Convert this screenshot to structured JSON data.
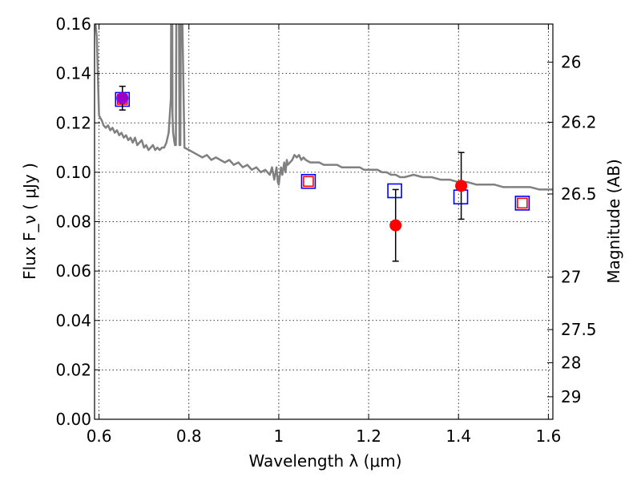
{
  "chart_data": {
    "type": "scatter",
    "title": "",
    "xlabel": "Wavelength  λ (μm)",
    "ylabel": "Flux  F_ν  ( μJy )",
    "y2label": "Magnitude (AB)",
    "xlim": [
      0.59,
      1.61
    ],
    "ylim": [
      0.0,
      0.16
    ],
    "grid": true,
    "x_ticks": [
      0.6,
      0.8,
      1.0,
      1.2,
      1.4,
      1.6
    ],
    "x_tick_labels": [
      "0.6",
      "0.8",
      "1",
      "1.2",
      "1.4",
      "1.6"
    ],
    "y_ticks": [
      0.0,
      0.02,
      0.04,
      0.06,
      0.08,
      0.1,
      0.12,
      0.14,
      0.16
    ],
    "y_tick_labels": [
      "0.00",
      "0.02",
      "0.04",
      "0.06",
      "0.08",
      "0.10",
      "0.12",
      "0.14",
      "0.16"
    ],
    "y2_ticks": [
      26,
      26.2,
      26.5,
      27,
      27.5,
      28,
      29
    ],
    "y2_tick_labels": [
      "26",
      "26.2",
      "26.5",
      "27",
      "27.5",
      "28",
      "29"
    ],
    "series": [
      {
        "kind": "line",
        "color": "#808080",
        "x": [
          0.592,
          0.595,
          0.598,
          0.6,
          0.603,
          0.606,
          0.61,
          0.615,
          0.62,
          0.625,
          0.63,
          0.635,
          0.64,
          0.645,
          0.65,
          0.655,
          0.66,
          0.665,
          0.67,
          0.675,
          0.68,
          0.685,
          0.69,
          0.695,
          0.7,
          0.705,
          0.71,
          0.715,
          0.72,
          0.725,
          0.73,
          0.735,
          0.74,
          0.745,
          0.75,
          0.755,
          0.76,
          0.7605,
          0.763,
          0.7635,
          0.765,
          0.768,
          0.769,
          0.771,
          0.772,
          0.778,
          0.779,
          0.781,
          0.782,
          0.785,
          0.79,
          0.8,
          0.81,
          0.82,
          0.83,
          0.84,
          0.85,
          0.86,
          0.87,
          0.88,
          0.89,
          0.9,
          0.91,
          0.92,
          0.93,
          0.94,
          0.95,
          0.96,
          0.97,
          0.98,
          0.985,
          0.99,
          0.995,
          0.998,
          1.0,
          1.002,
          1.005,
          1.008,
          1.012,
          1.015,
          1.018,
          1.02,
          1.025,
          1.03,
          1.035,
          1.04,
          1.045,
          1.05,
          1.055,
          1.06,
          1.07,
          1.08,
          1.09,
          1.1,
          1.11,
          1.12,
          1.13,
          1.14,
          1.15,
          1.16,
          1.17,
          1.18,
          1.19,
          1.2,
          1.21,
          1.22,
          1.23,
          1.24,
          1.25,
          1.26,
          1.27,
          1.28,
          1.3,
          1.32,
          1.34,
          1.36,
          1.38,
          1.4,
          1.42,
          1.44,
          1.46,
          1.48,
          1.5,
          1.52,
          1.54,
          1.56,
          1.58,
          1.6,
          1.61
        ],
        "y": [
          0.16,
          0.155,
          0.135,
          0.123,
          0.122,
          0.121,
          0.119,
          0.118,
          0.119,
          0.117,
          0.118,
          0.116,
          0.117,
          0.115,
          0.116,
          0.114,
          0.115,
          0.113,
          0.114,
          0.112,
          0.114,
          0.111,
          0.112,
          0.113,
          0.11,
          0.111,
          0.109,
          0.11,
          0.111,
          0.109,
          0.11,
          0.109,
          0.11,
          0.11,
          0.112,
          0.116,
          0.13,
          0.165,
          0.165,
          0.123,
          0.116,
          0.112,
          0.111,
          0.111,
          0.165,
          0.165,
          0.111,
          0.111,
          0.165,
          0.165,
          0.11,
          0.109,
          0.108,
          0.107,
          0.106,
          0.107,
          0.105,
          0.106,
          0.105,
          0.104,
          0.105,
          0.103,
          0.104,
          0.102,
          0.103,
          0.101,
          0.102,
          0.1,
          0.101,
          0.099,
          0.102,
          0.097,
          0.102,
          0.096,
          0.095,
          0.098,
          0.102,
          0.099,
          0.104,
          0.1,
          0.105,
          0.103,
          0.104,
          0.105,
          0.107,
          0.106,
          0.107,
          0.105,
          0.106,
          0.105,
          0.104,
          0.104,
          0.104,
          0.103,
          0.103,
          0.103,
          0.103,
          0.102,
          0.102,
          0.102,
          0.102,
          0.102,
          0.101,
          0.101,
          0.101,
          0.101,
          0.1,
          0.1,
          0.099,
          0.099,
          0.098,
          0.098,
          0.099,
          0.098,
          0.098,
          0.097,
          0.097,
          0.096,
          0.096,
          0.095,
          0.095,
          0.095,
          0.094,
          0.094,
          0.094,
          0.094,
          0.093,
          0.093,
          0.093
        ]
      },
      {
        "kind": "square",
        "color": "#0000ff",
        "x": [
          0.652,
          1.066,
          1.258,
          1.405,
          1.542
        ],
        "y": [
          0.1295,
          0.0963,
          0.0925,
          0.09,
          0.0875
        ]
      },
      {
        "kind": "square",
        "color": "#ff0000",
        "x": [
          0.652,
          1.066,
          1.542
        ],
        "y": [
          0.1295,
          0.0963,
          0.0875
        ]
      },
      {
        "kind": "point",
        "color": "#ff0000",
        "x": [
          1.26,
          1.406
        ],
        "y": [
          0.0785,
          0.0945
        ],
        "yerr": [
          0.0145,
          0.0135
        ]
      },
      {
        "kind": "point",
        "color": "#9900cc",
        "x": [
          0.652
        ],
        "y": [
          0.13
        ],
        "yerr": [
          0.0048
        ]
      }
    ]
  }
}
